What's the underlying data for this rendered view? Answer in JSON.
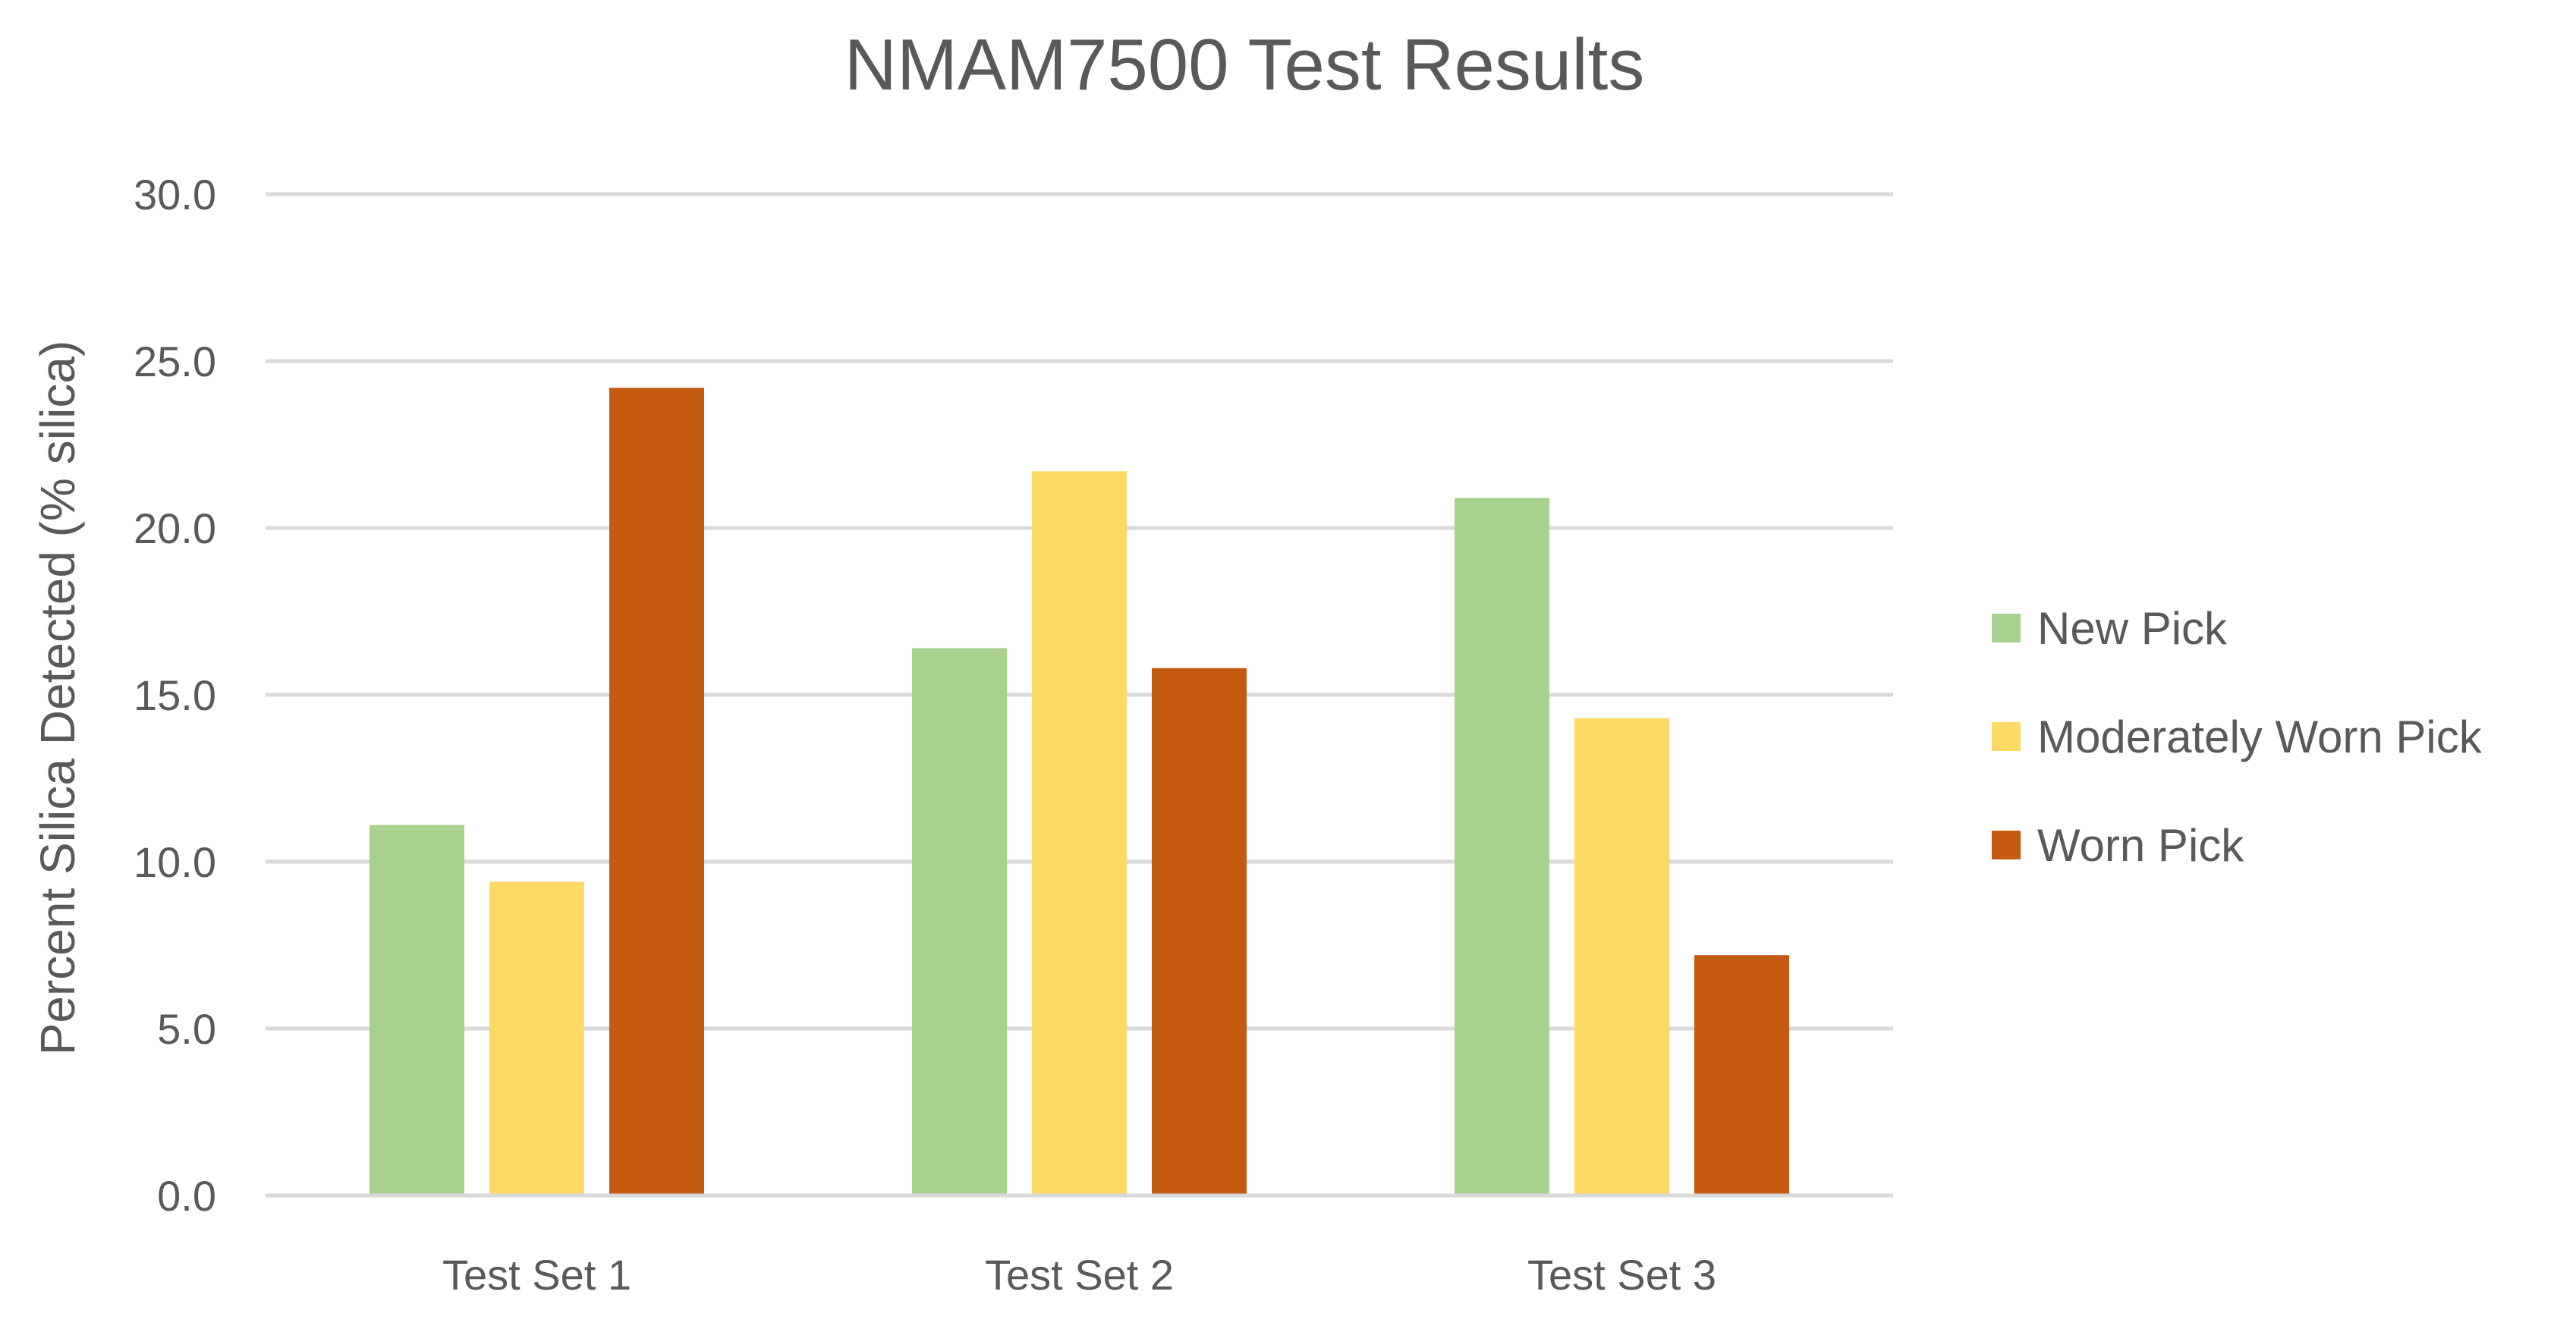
{
  "chart_data": {
    "type": "bar",
    "title": "NMAM7500 Test Results",
    "xlabel": "",
    "ylabel": "Percent Silica Detected (% silica)",
    "categories": [
      "Test Set 1",
      "Test Set 2",
      "Test Set 3"
    ],
    "series": [
      {
        "name": "New Pick",
        "color": "#a9d18e",
        "values": [
          11.1,
          16.4,
          20.9
        ]
      },
      {
        "name": "Moderately Worn Pick",
        "color": "#ffd966",
        "values": [
          9.4,
          21.7,
          14.3
        ]
      },
      {
        "name": "Worn Pick",
        "color": "#c55a11",
        "values": [
          24.2,
          15.8,
          7.2
        ]
      }
    ],
    "ylim": [
      0,
      30
    ],
    "yticks": [
      "0.0",
      "5.0",
      "10.0",
      "15.0",
      "20.0",
      "25.0",
      "30.0"
    ],
    "grid": true,
    "legend_position": "right"
  }
}
